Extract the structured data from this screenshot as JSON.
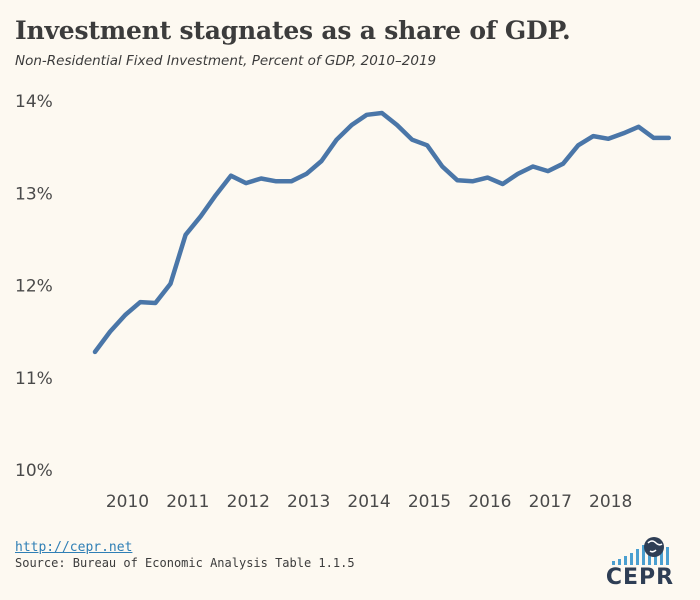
{
  "title": "Investment stagnates as a share of GDP.",
  "subtitle": "Non-Residential Fixed Investment, Percent of GDP, 2010–2019",
  "footer": {
    "link": "http://cepr.net",
    "source": "Source: Bureau of Economic Analysis Table 1.1.5",
    "logo_text": "CEPR"
  },
  "colors": {
    "background": "#fdf9f1",
    "line": "#4a76a8",
    "logo_bars": "#4a9fd0"
  },
  "chart_data": {
    "type": "line",
    "title": "Investment stagnates as a share of GDP.",
    "subtitle": "Non-Residential Fixed Investment, Percent of GDP, 2010–2019",
    "xlabel": "",
    "ylabel": "",
    "ylim": [
      10,
      14
    ],
    "yticks": [
      "10%",
      "11%",
      "12%",
      "13%",
      "14%"
    ],
    "xticks": [
      "2010",
      "2011",
      "2012",
      "2013",
      "2014",
      "2015",
      "2016",
      "2017",
      "2018"
    ],
    "grid": false,
    "legend": "none",
    "series": [
      {
        "x": [
          "2010Q1",
          "2010Q2",
          "2010Q3",
          "2010Q4",
          "2011Q1",
          "2011Q2",
          "2011Q3",
          "2011Q4",
          "2012Q1",
          "2012Q2",
          "2012Q3",
          "2012Q4",
          "2013Q1",
          "2013Q2",
          "2013Q3",
          "2013Q4",
          "2014Q1",
          "2014Q2",
          "2014Q3",
          "2014Q4",
          "2015Q1",
          "2015Q2",
          "2015Q3",
          "2015Q4",
          "2016Q1",
          "2016Q2",
          "2016Q3",
          "2016Q4",
          "2017Q1",
          "2017Q2",
          "2017Q3",
          "2017Q4",
          "2018Q1",
          "2018Q2",
          "2018Q3",
          "2018Q4",
          "2019Q1",
          "2019Q2",
          "2019Q3"
        ],
        "values": [
          11.28,
          11.5,
          11.68,
          11.82,
          11.81,
          12.02,
          12.55,
          12.75,
          12.98,
          13.19,
          13.11,
          13.16,
          13.13,
          13.13,
          13.21,
          13.35,
          13.58,
          13.74,
          13.85,
          13.87,
          13.74,
          13.58,
          13.52,
          13.29,
          13.14,
          13.13,
          13.17,
          13.1,
          13.21,
          13.29,
          13.24,
          13.32,
          13.52,
          13.62,
          13.59,
          13.65,
          13.72,
          13.6,
          13.6
        ]
      }
    ]
  }
}
